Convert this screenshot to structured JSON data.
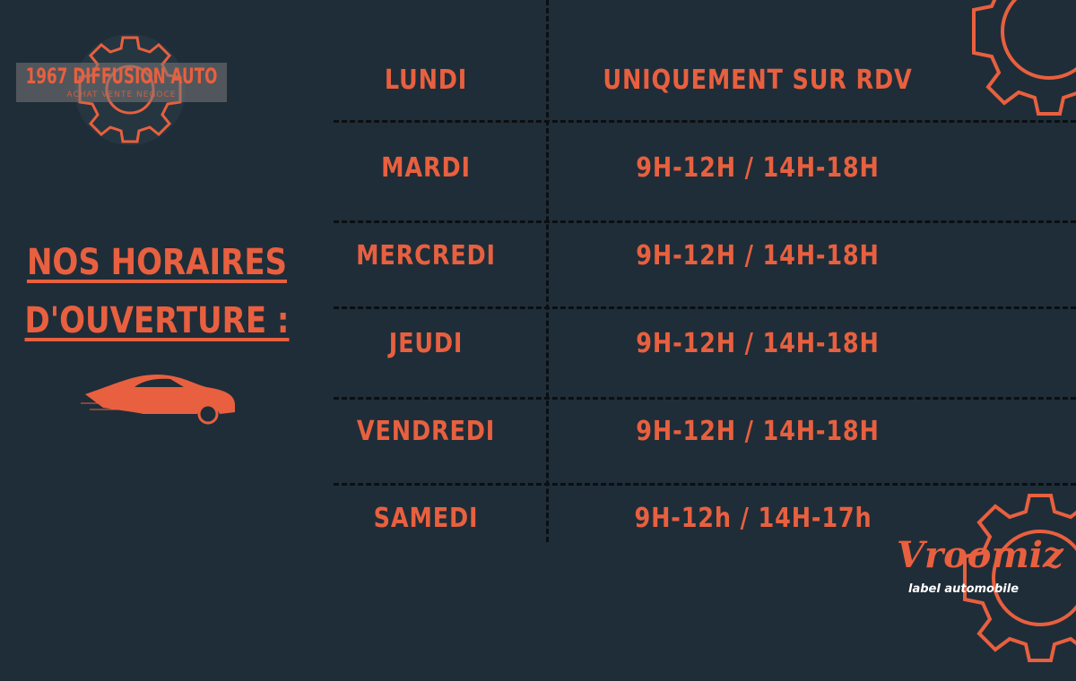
{
  "logo": {
    "name": "1967 DIFFUSION AUTO",
    "tagline": "ACHAT VENTE NEGOCE"
  },
  "heading": {
    "line1": "NOS HORAIRES",
    "line2": "D'OUVERTURE :"
  },
  "schedule": [
    {
      "day": "Lundi",
      "hours": "uniquement sur rdv"
    },
    {
      "day": "Mardi",
      "hours": "9H-12H / 14H-18H"
    },
    {
      "day": "Mercredi",
      "hours": "9H-12H / 14H-18H"
    },
    {
      "day": "Jeudi",
      "hours": "9H-12H / 14H-18H"
    },
    {
      "day": "Vendredi",
      "hours": "9H-12H / 14H-18H"
    },
    {
      "day": "Samedi",
      "hours": "9H-12h / 14H-17h"
    }
  ],
  "brand": {
    "name": "Vroomiz",
    "tagline": "label automobile"
  },
  "colors": {
    "background": "#1f2d38",
    "accent": "#e8603f",
    "divider": "#0b0f12"
  }
}
